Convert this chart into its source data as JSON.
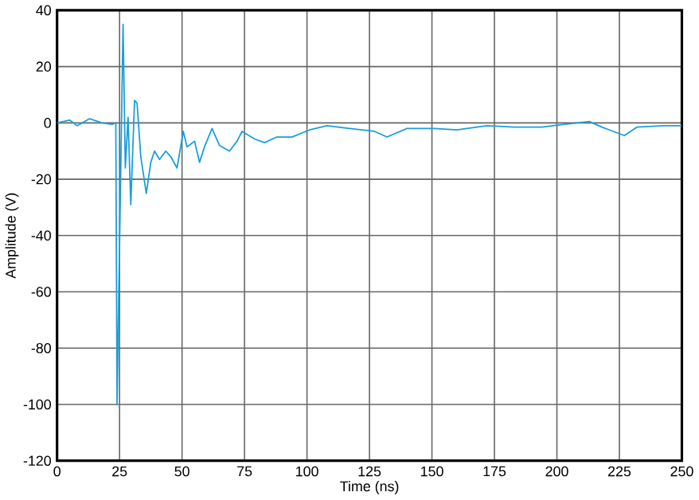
{
  "chart_data": {
    "type": "line",
    "xlabel": "Time (ns)",
    "ylabel": "Amplitude (V)",
    "xlim": [
      0,
      250
    ],
    "ylim": [
      -120,
      40
    ],
    "xticks": [
      0,
      25,
      50,
      75,
      100,
      125,
      150,
      175,
      200,
      225,
      250
    ],
    "yticks": [
      -120,
      -100,
      -80,
      -60,
      -40,
      -20,
      0,
      20,
      40
    ],
    "grid": true,
    "line_style": "solid",
    "series": [
      {
        "color": "#1a9fdb",
        "x": [
          0,
          5,
          8,
          13,
          18,
          22,
          23.5,
          24,
          26.4,
          27.3,
          28.4,
          29.5,
          31,
          32,
          33.5,
          35.7,
          37.5,
          39,
          41,
          43.5,
          45.5,
          48,
          50.5,
          52,
          55,
          57,
          59,
          62,
          65,
          69,
          72,
          74,
          79,
          83,
          88,
          94,
          101,
          108,
          117,
          127,
          132,
          140,
          151,
          160,
          172,
          183,
          194,
          203,
          213,
          218,
          227,
          232,
          243,
          250
        ],
        "values": [
          0,
          1,
          -1,
          1.5,
          0,
          -0.5,
          0,
          -100,
          35,
          -16,
          2,
          -29,
          8,
          7,
          -12,
          -25,
          -14,
          -10,
          -13,
          -10,
          -12,
          -16,
          -3,
          -8.5,
          -6.5,
          -14,
          -8.5,
          -2,
          -8,
          -10,
          -6.5,
          -3,
          -5.7,
          -7,
          -5,
          -5,
          -2.5,
          -1,
          -2,
          -3,
          -5,
          -2,
          -2,
          -2.5,
          -1,
          -1.5,
          -1.5,
          -0.5,
          0.5,
          -1.5,
          -4.5,
          -1.5,
          -1,
          -1
        ]
      }
    ]
  }
}
